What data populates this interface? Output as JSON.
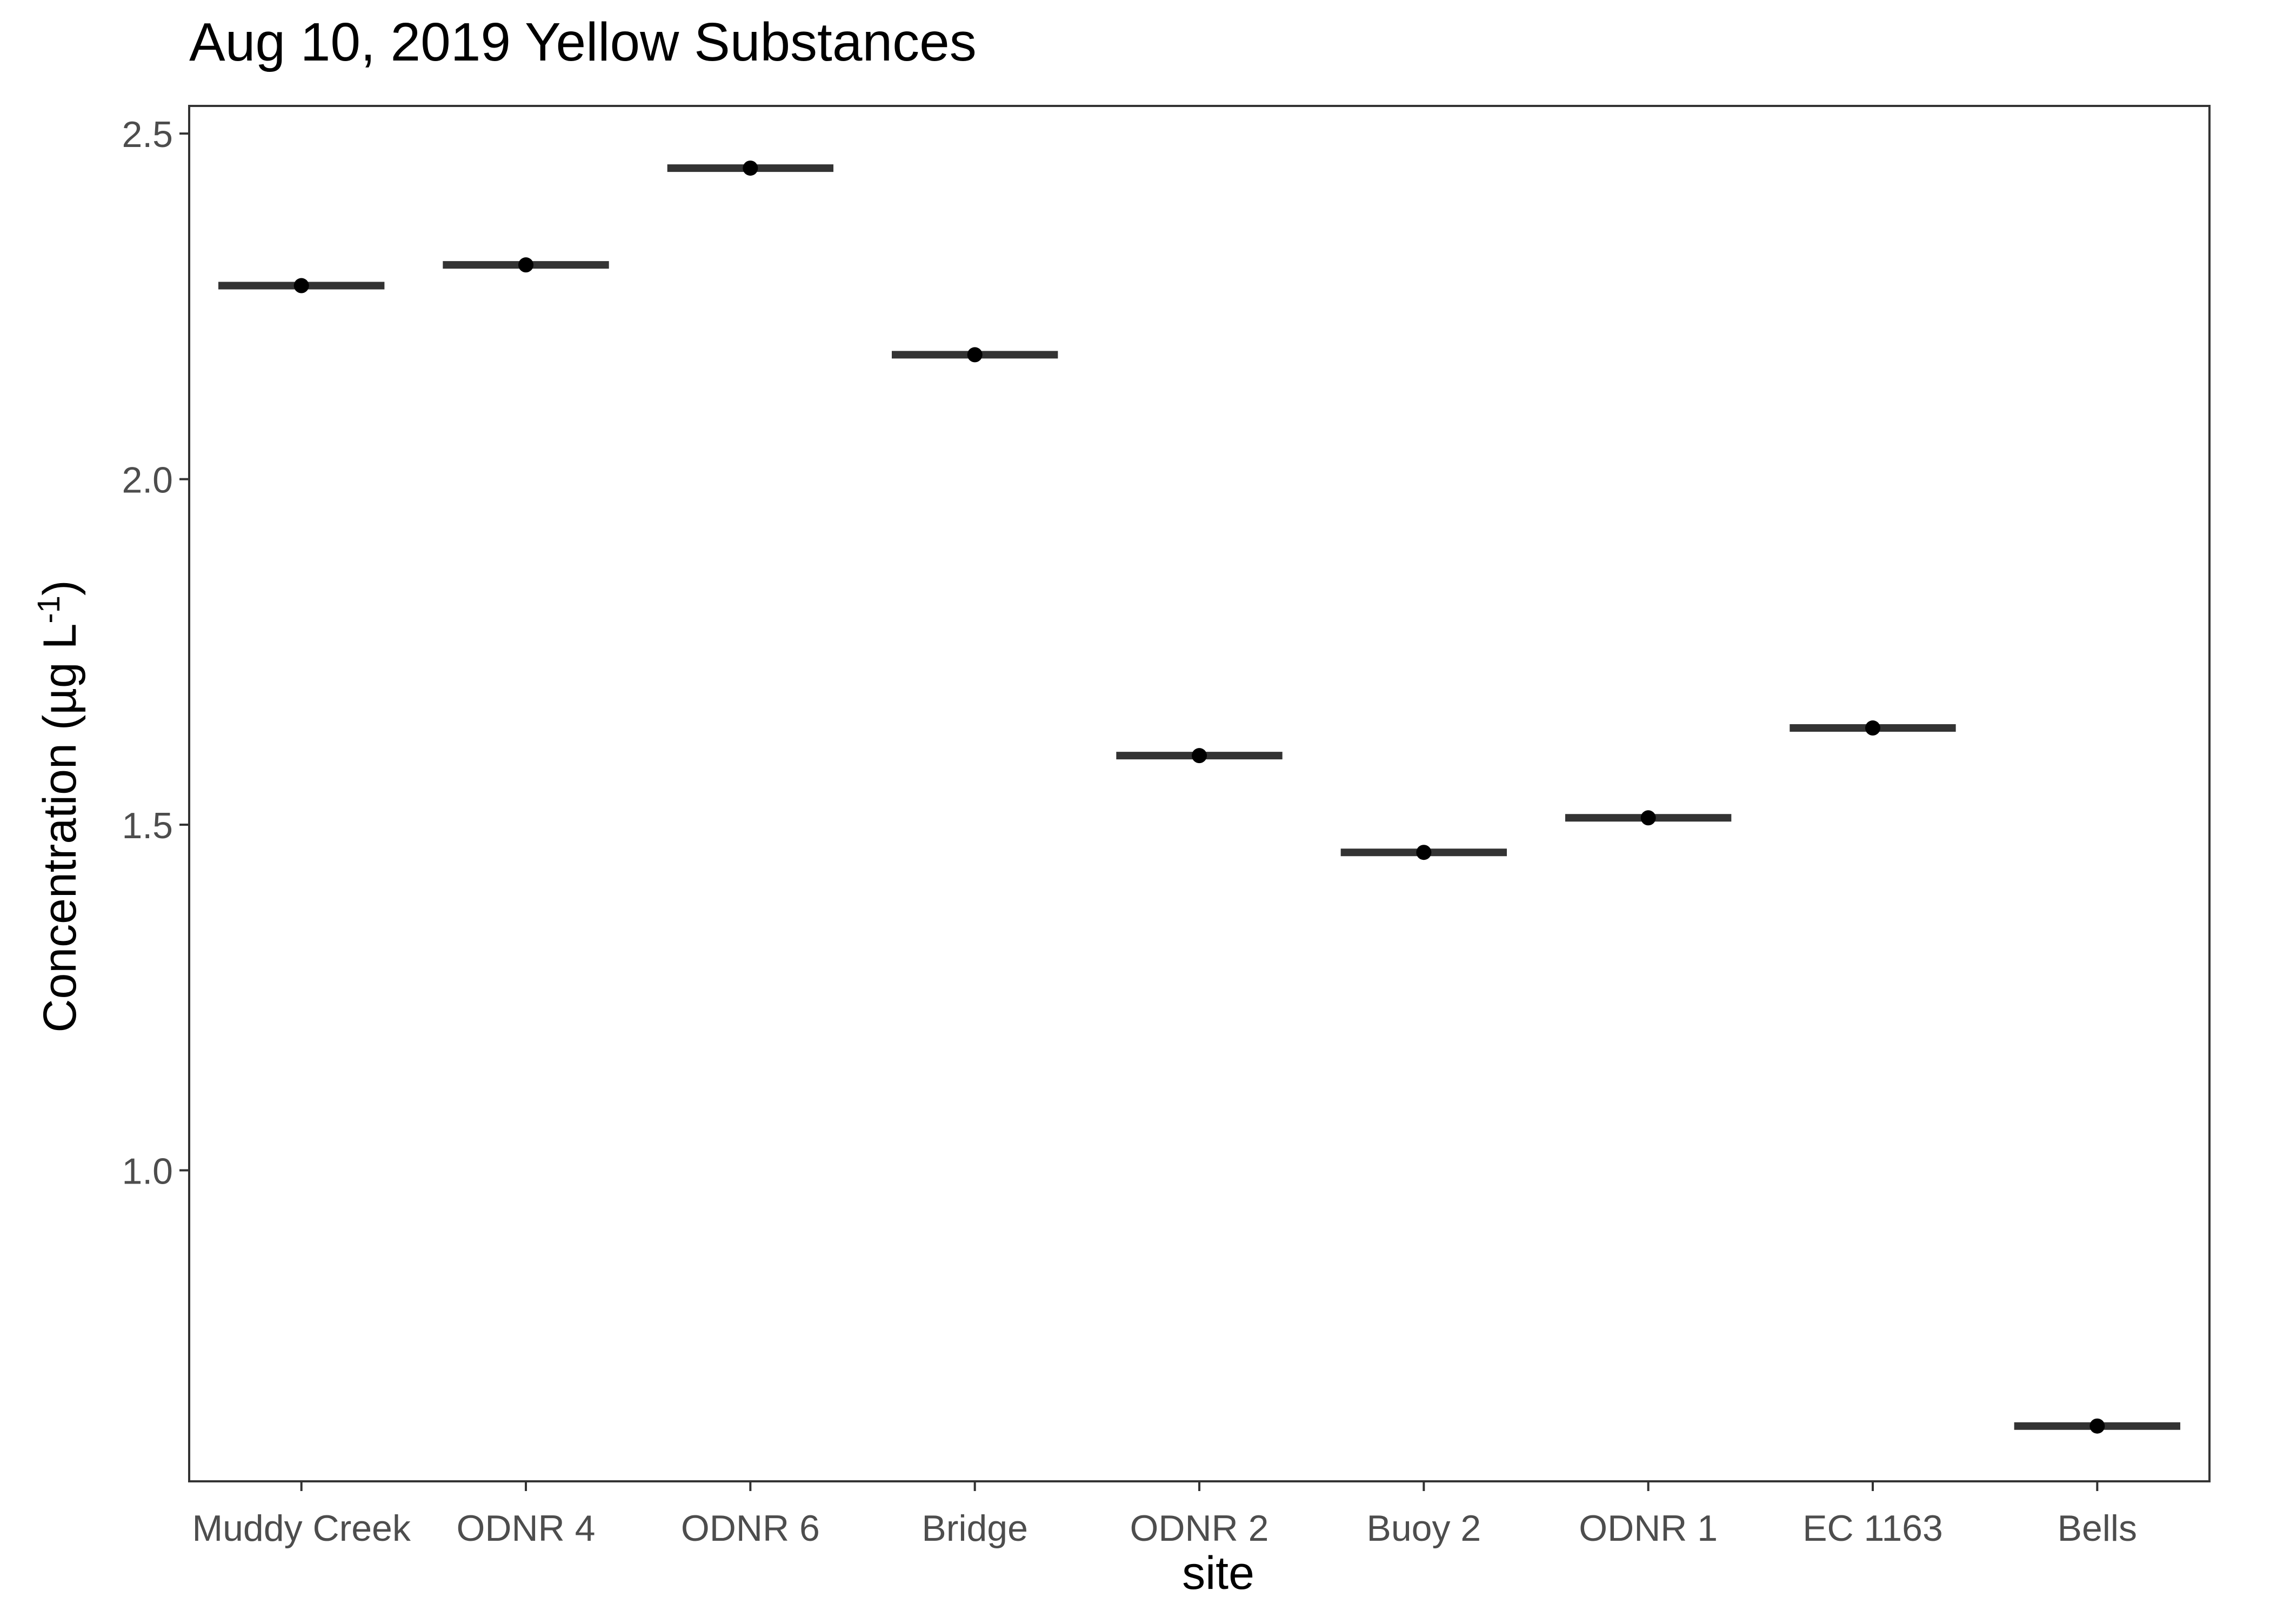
{
  "chart_data": {
    "type": "scatter",
    "title": "Aug 10, 2019 Yellow Substances",
    "xlabel": "site",
    "ylabel": {
      "main": "Concentration (µg L",
      "superscript": "-1",
      "close": ")"
    },
    "categories": [
      "Muddy Creek",
      "ODNR 4",
      "ODNR 6",
      "Bridge",
      "ODNR 2",
      "Buoy 2",
      "ODNR 1",
      "EC 1163",
      "Bells"
    ],
    "values": [
      2.28,
      2.31,
      2.45,
      2.18,
      1.6,
      1.46,
      1.51,
      1.64,
      0.63
    ],
    "yticks": [
      1.0,
      1.5,
      2.0,
      2.5
    ],
    "ytick_labels": [
      "1.0",
      "1.5",
      "2.0",
      "2.5"
    ],
    "ylim": [
      0.55,
      2.54
    ],
    "grid": false,
    "legend": "none",
    "colors": {
      "point": "#000000",
      "median_bar": "#333333",
      "panel_border": "#333333",
      "tick_text": "#4d4d4d",
      "background": "#ffffff"
    }
  }
}
